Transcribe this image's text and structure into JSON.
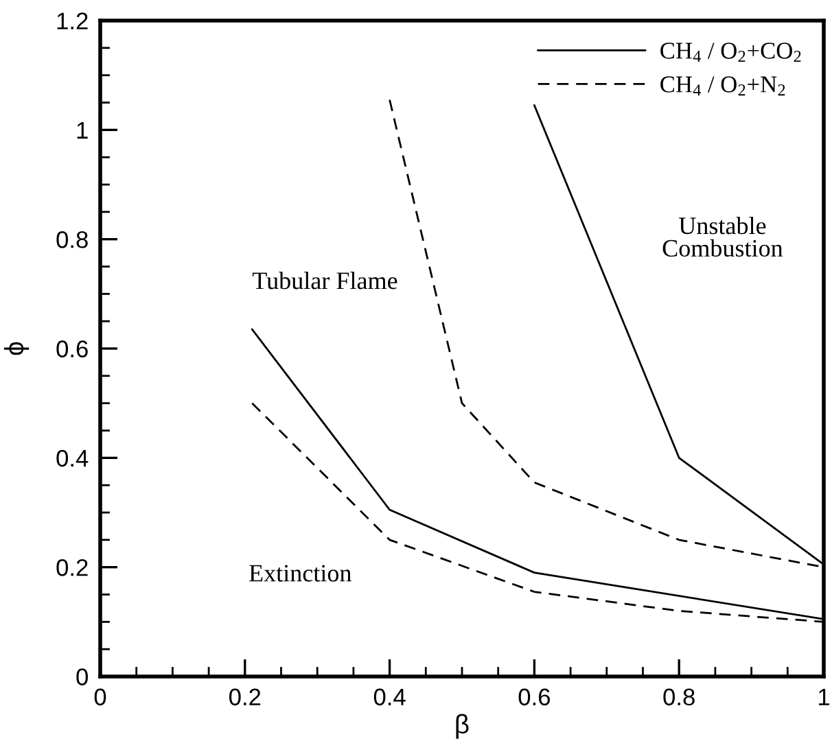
{
  "chart_data": {
    "type": "line",
    "xlabel": "β",
    "ylabel": "ϕ",
    "xlim": [
      0,
      1
    ],
    "ylim": [
      0,
      1.2
    ],
    "xticks": [
      0,
      {
        "value": 0.05,
        "label": null
      },
      {
        "value": 0.1,
        "label": null
      },
      {
        "value": 0.15,
        "label": null
      },
      0.2,
      {
        "value": 0.25,
        "label": null
      },
      {
        "value": 0.3,
        "label": null
      },
      {
        "value": 0.35,
        "label": null
      },
      0.4,
      {
        "value": 0.45,
        "label": null
      },
      {
        "value": 0.5,
        "label": null
      },
      {
        "value": 0.55,
        "label": null
      },
      0.6,
      {
        "value": 0.65,
        "label": null
      },
      {
        "value": 0.7,
        "label": null
      },
      {
        "value": 0.75,
        "label": null
      },
      0.8,
      {
        "value": 0.85,
        "label": null
      },
      {
        "value": 0.9,
        "label": null
      },
      {
        "value": 0.95,
        "label": null
      },
      1
    ],
    "yticks": [
      0,
      {
        "value": 0.05,
        "label": null
      },
      {
        "value": 0.1,
        "label": null
      },
      {
        "value": 0.15,
        "label": null
      },
      0.2,
      {
        "value": 0.25,
        "label": null
      },
      {
        "value": 0.3,
        "label": null
      },
      {
        "value": 0.35,
        "label": null
      },
      0.4,
      {
        "value": 0.45,
        "label": null
      },
      {
        "value": 0.5,
        "label": null
      },
      {
        "value": 0.55,
        "label": null
      },
      0.6,
      {
        "value": 0.65,
        "label": null
      },
      {
        "value": 0.7,
        "label": null
      },
      {
        "value": 0.75,
        "label": null
      },
      0.8,
      {
        "value": 0.85,
        "label": null
      },
      {
        "value": 0.9,
        "label": null
      },
      {
        "value": 0.95,
        "label": null
      },
      1,
      {
        "value": 1.05,
        "label": null
      },
      {
        "value": 1.1,
        "label": null
      },
      {
        "value": 1.15,
        "label": null
      },
      1.2
    ],
    "grid": false,
    "legend": "top right",
    "marker": "none",
    "series": [
      {
        "name": "CH$_{4}$ / O$_{2}$+CO$_{2}$",
        "color": "#000000",
        "line_style": "solid",
        "x": [
          0.21,
          0.4,
          0.6,
          1.0
        ],
        "values": [
          0.635,
          0.305,
          0.19,
          0.105
        ]
      },
      {
        "name": "CH$_{4}$ / O$_{2}$+N$_{2}$",
        "color": "#000000",
        "line_style": "dashed",
        "x": [
          0.21,
          0.4,
          0.6,
          0.8,
          1.0
        ],
        "values": [
          0.5,
          0.25,
          0.155,
          0.12,
          0.1
        ]
      },
      {
        "color": "#000000",
        "line_style": "solid",
        "x": [
          0.6,
          0.8,
          1.0
        ],
        "values": [
          1.045,
          0.4,
          0.205
        ]
      },
      {
        "color": "#000000",
        "line_style": "dashed",
        "x": [
          0.4,
          0.5,
          0.6,
          0.8,
          1.0
        ],
        "values": [
          1.055,
          0.5,
          0.355,
          0.25,
          0.2
        ]
      }
    ],
    "annotations": [
      "Tubular Flame",
      "Unstable\nCombustion",
      "Extinction"
    ]
  }
}
